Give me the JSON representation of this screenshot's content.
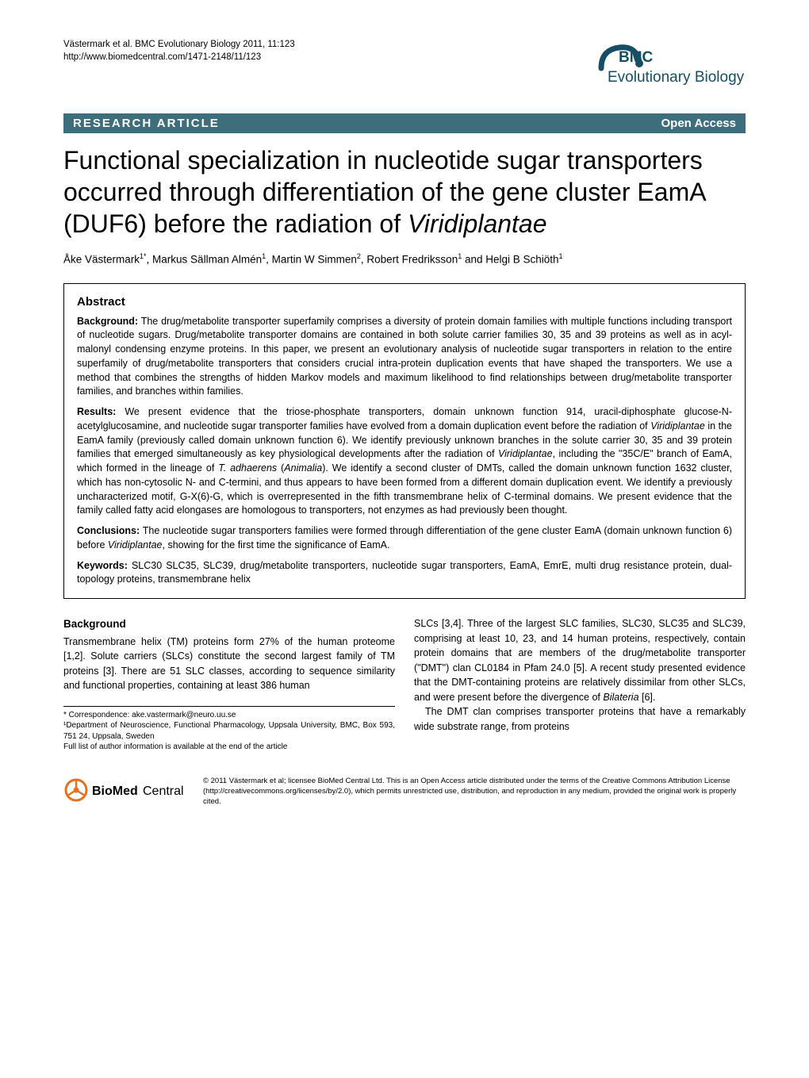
{
  "header": {
    "citation_line1": "Västermark et al. BMC Evolutionary Biology 2011, 11:123",
    "citation_line2": "http://www.biomedcentral.com/1471-2148/11/123",
    "logo_prefix": "BMC",
    "logo_journal": "Evolutionary Biology"
  },
  "title_bar": {
    "left": "RESEARCH ARTICLE",
    "right": "Open Access",
    "bg_color": "#3e6e7b",
    "text_color": "#ffffff"
  },
  "article": {
    "title_html": "Functional specialization in nucleotide sugar transporters occurred through differentiation of the gene cluster EamA (DUF6) before the radiation of <span class=\"italic\">Viridiplantae</span>",
    "authors_html": "Åke Västermark<sup>1*</sup>, Markus Sällman Almén<sup>1</sup>, Martin W Simmen<sup>2</sup>, Robert Fredriksson<sup>1</sup> and Helgi B Schiöth<sup>1</sup>"
  },
  "abstract": {
    "heading": "Abstract",
    "background_label": "Background:",
    "background_text": " The drug/metabolite transporter superfamily comprises a diversity of protein domain families with multiple functions including transport of nucleotide sugars. Drug/metabolite transporter domains are contained in both solute carrier families 30, 35 and 39 proteins as well as in acyl-malonyl condensing enzyme proteins. In this paper, we present an evolutionary analysis of nucleotide sugar transporters in relation to the entire superfamily of drug/metabolite transporters that considers crucial intra-protein duplication events that have shaped the transporters. We use a method that combines the strengths of hidden Markov models and maximum likelihood to find relationships between drug/metabolite transporter families, and branches within families.",
    "results_label": "Results:",
    "results_html": " We present evidence that the triose-phosphate transporters, domain unknown function 914, uracil-diphosphate glucose-N-acetylglucosamine, and nucleotide sugar transporter families have evolved from a domain duplication event before the radiation of <span class=\"italic\">Viridiplantae</span> in the EamA family (previously called domain unknown function 6). We identify previously unknown branches in the solute carrier 30, 35 and 39 protein families that emerged simultaneously as key physiological developments after the radiation of <span class=\"italic\">Viridiplantae</span>, including the \"35C/E\" branch of EamA, which formed in the lineage of <span class=\"italic\">T. adhaerens</span> (<span class=\"italic\">Animalia</span>). We identify a second cluster of DMTs, called the domain unknown function 1632 cluster, which has non-cytosolic N- and C-termini, and thus appears to have been formed from a different domain duplication event. We identify a previously uncharacterized motif, G-X(6)-G, which is overrepresented in the fifth transmembrane helix of C-terminal domains. We present evidence that the family called fatty acid elongases are homologous to transporters, not enzymes as had previously been thought.",
    "conclusions_label": "Conclusions:",
    "conclusions_html": " The nucleotide sugar transporters families were formed through differentiation of the gene cluster EamA (domain unknown function 6) before <span class=\"italic\">Viridiplantae</span>, showing for the first time the significance of EamA.",
    "keywords_label": "Keywords:",
    "keywords_text": " SLC30 SLC35, SLC39, drug/metabolite transporters, nucleotide sugar transporters, EamA, EmrE, multi drug resistance protein, dual-topology proteins, transmembrane helix"
  },
  "body": {
    "heading": "Background",
    "col1_text": "Transmembrane helix (TM) proteins form 27% of the human proteome [1,2]. Solute carriers (SLCs) constitute the second largest family of TM proteins [3]. There are 51 SLC classes, according to sequence similarity and functional properties, containing at least 386 human",
    "col2_html": "SLCs [3,4]. Three of the largest SLC families, SLC30, SLC35 and SLC39, comprising at least 10, 23, and 14 human proteins, respectively, contain protein domains that are members of the drug/metabolite transporter (\"DMT\") clan CL0184 in Pfam 24.0 [5]. A recent study presented evidence that the DMT-containing proteins are relatively dissimilar from other SLCs, and were present before the divergence of <span class=\"italic\">Bilateria</span> [6].",
    "col2_para2": "The DMT clan comprises transporter proteins that have a remarkably wide substrate range, from proteins"
  },
  "footnotes": {
    "correspondence": "* Correspondence: ake.vastermark@neuro.uu.se",
    "affil1": "¹Department of Neuroscience, Functional Pharmacology, Uppsala University, BMC, Box 593, 751 24, Uppsala, Sweden",
    "affil_note": "Full list of author information is available at the end of the article"
  },
  "footer": {
    "logo_text": "BioMed Central",
    "license": "© 2011 Västermark et al; licensee BioMed Central Ltd. This is an Open Access article distributed under the terms of the Creative Commons Attribution License (http://creativecommons.org/licenses/by/2.0), which permits unrestricted use, distribution, and reproduction in any medium, provided the original work is properly cited.",
    "logo_accent_color": "#e37222"
  },
  "styling": {
    "page_bg": "#ffffff",
    "text_color": "#000000",
    "body_font_size": 12.5,
    "title_font_size": 32,
    "columns_gap": 24
  }
}
